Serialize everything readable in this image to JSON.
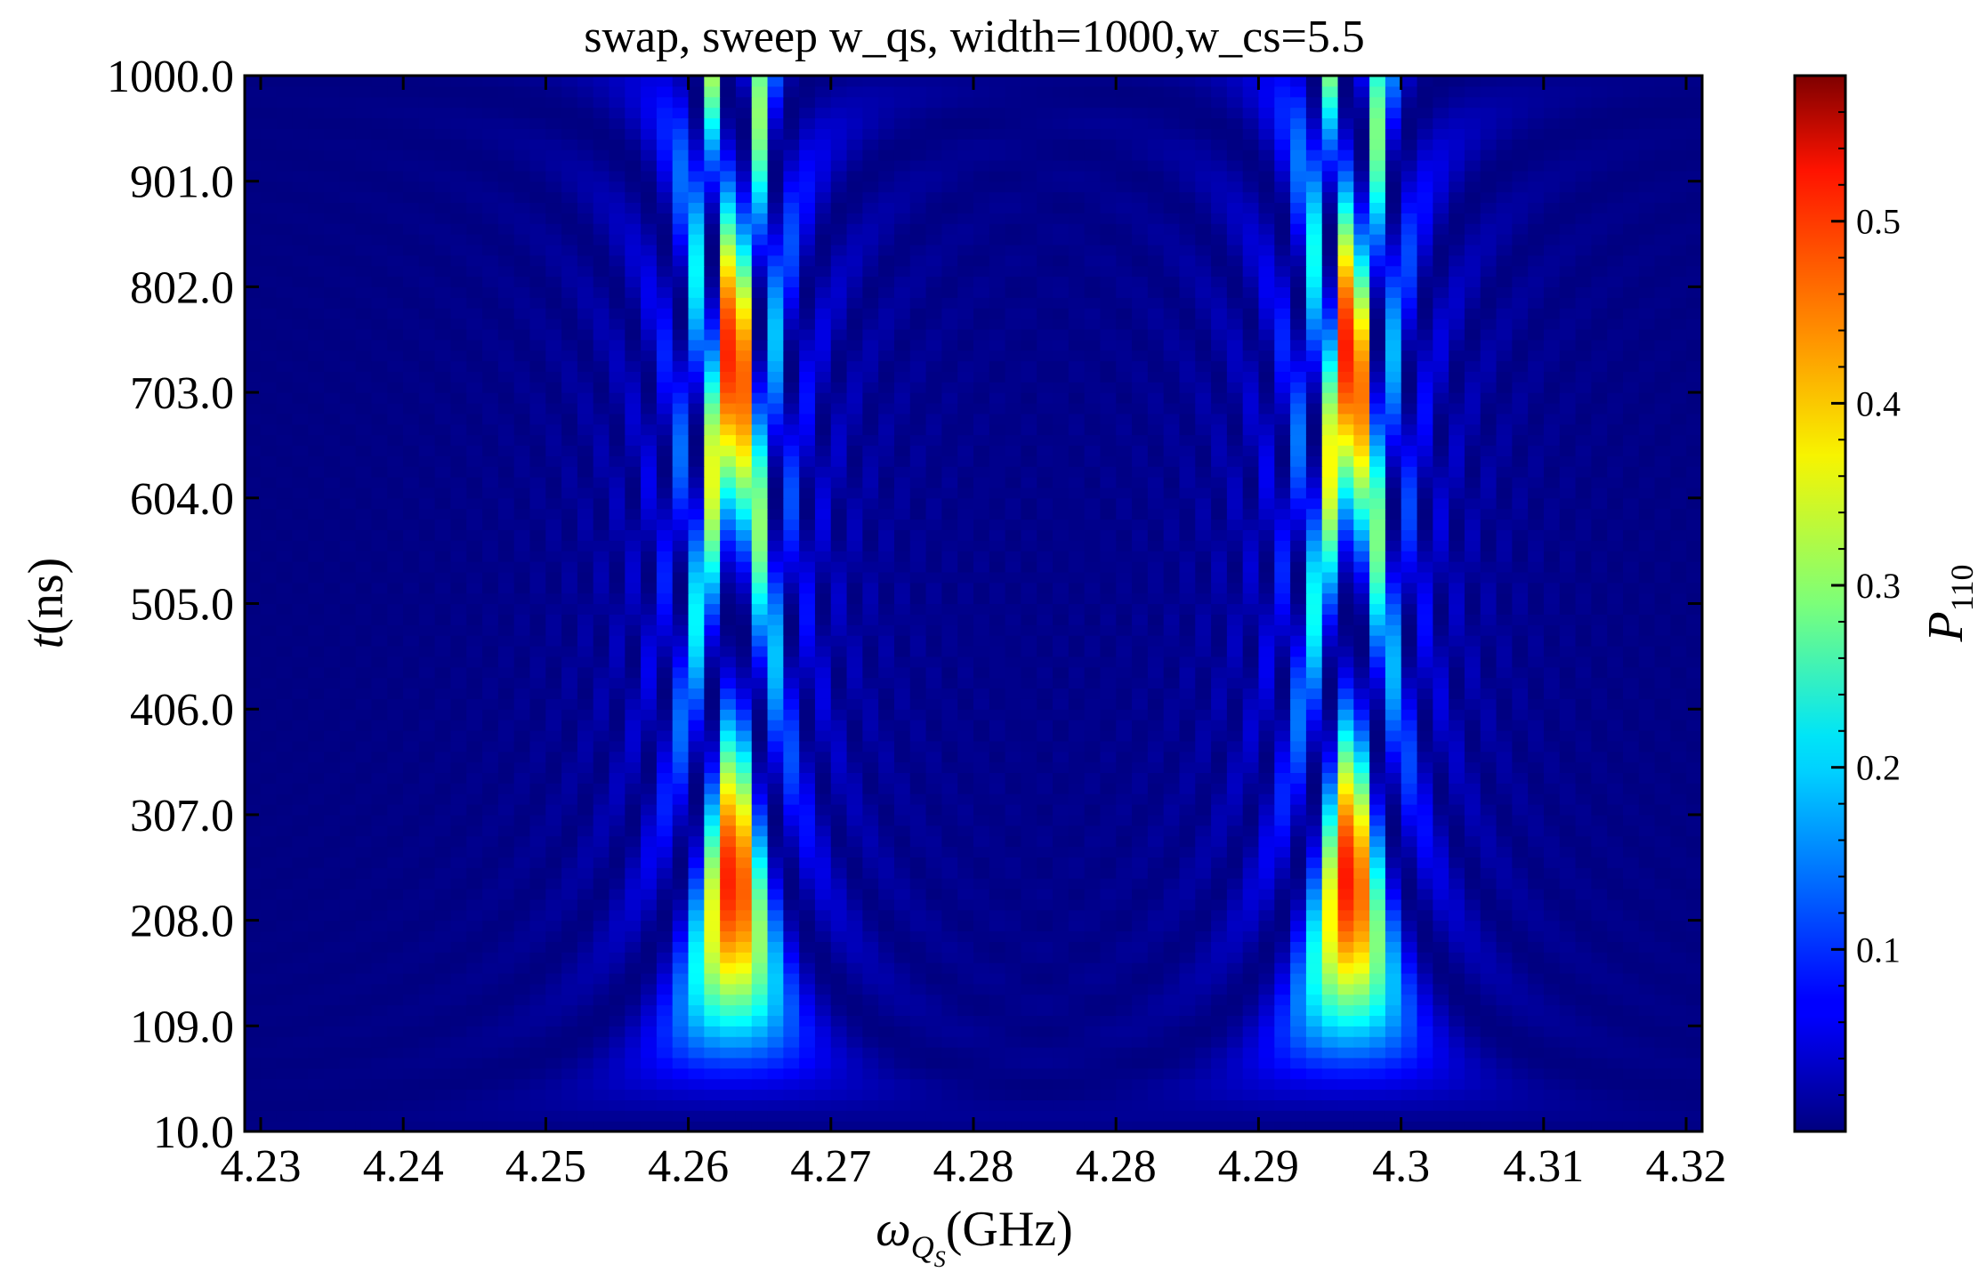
{
  "chart_data": {
    "type": "heatmap",
    "title": "swap, sweep w_qs, width=1000,w_cs=5.5",
    "xlabel": {
      "symbol": "ω",
      "subscript": "Q",
      "subsubscript": "S",
      "unit": "(GHz)"
    },
    "ylabel": {
      "symbol": "t",
      "unit": "(ns)"
    },
    "x_tick_labels": [
      "4.23",
      "4.24",
      "4.25",
      "4.26",
      "4.27",
      "4.28",
      "4.28",
      "4.29",
      "4.3",
      "4.31",
      "4.32"
    ],
    "y_tick_labels": [
      "10.0",
      "109.0",
      "208.0",
      "307.0",
      "406.0",
      "505.0",
      "604.0",
      "703.0",
      "802.0",
      "901.0",
      "1000.0"
    ],
    "xlim": [
      4.2295,
      4.3205
    ],
    "ylim": [
      10.0,
      1000.0
    ],
    "colorbar": {
      "label": {
        "symbol": "P",
        "subscript": "110"
      },
      "tick_labels": [
        "0.1",
        "0.2",
        "0.3",
        "0.4",
        "0.5"
      ],
      "ticks": [
        0.1,
        0.2,
        0.3,
        0.4,
        0.5
      ],
      "range": [
        0.0,
        0.58
      ],
      "colormap": "jet"
    },
    "grid": false,
    "resonances_ghz": [
      4.26,
      4.2985
    ],
    "max_value_at_resonance": 0.58,
    "colors": {
      "jet_low": "#00007f",
      "jet_mid": "#7fff7f",
      "jet_high": "#7f0000"
    }
  }
}
